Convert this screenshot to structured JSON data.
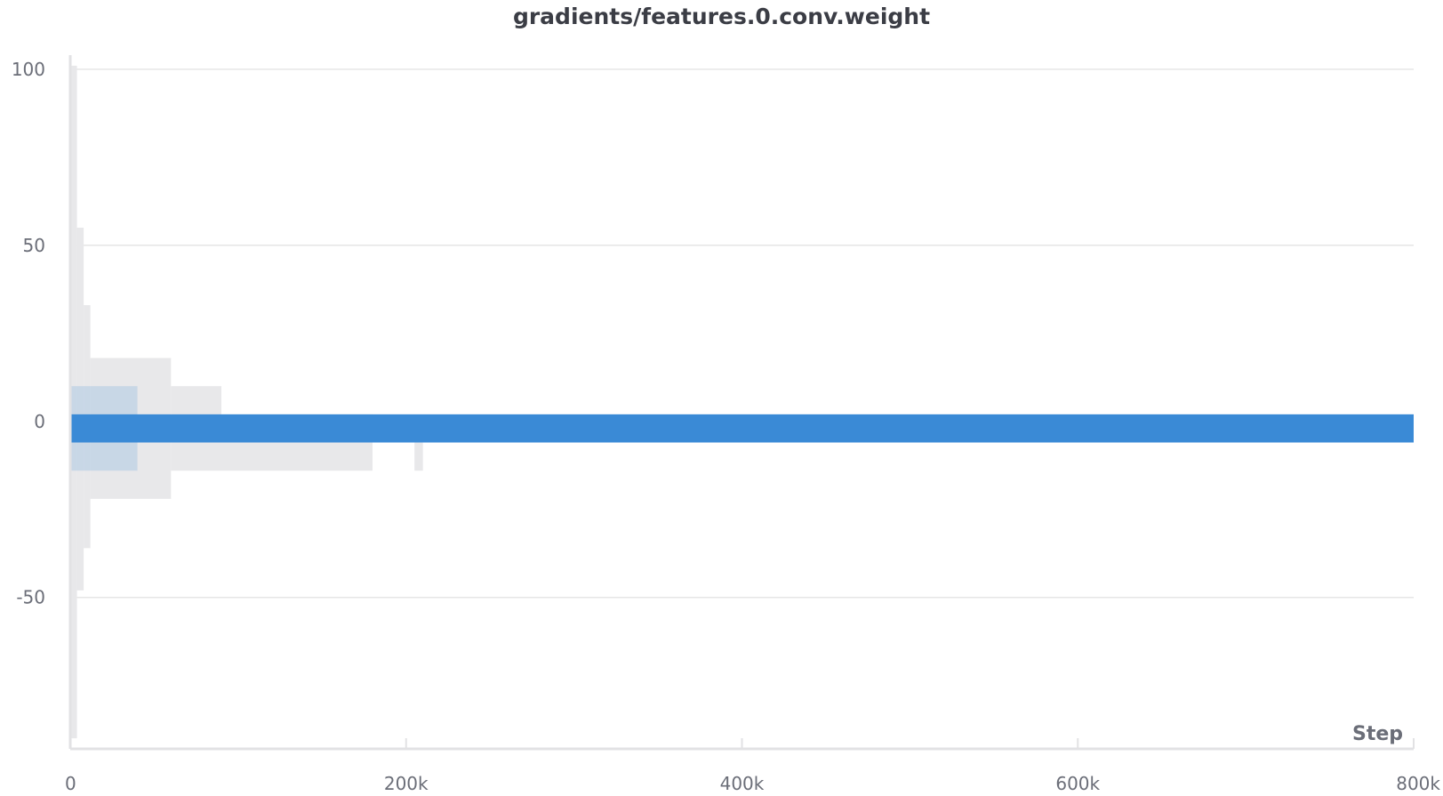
{
  "chart_data": {
    "type": "heatmap",
    "subtype": "histogram-over-time",
    "title": "gradients/features.0.conv.weight",
    "xlabel": "Step",
    "ylabel": "",
    "xlim": [
      0,
      800000
    ],
    "ylim": [
      -93,
      104
    ],
    "x_ticks": [
      {
        "value": 0,
        "label": "0"
      },
      {
        "value": 200000,
        "label": "200k"
      },
      {
        "value": 400000,
        "label": "400k"
      },
      {
        "value": 600000,
        "label": "600k"
      },
      {
        "value": 800000,
        "label": "800k"
      }
    ],
    "y_ticks": [
      {
        "value": -50,
        "label": "-50"
      },
      {
        "value": 0,
        "label": "0"
      },
      {
        "value": 50,
        "label": "50"
      },
      {
        "value": 100,
        "label": "100"
      }
    ],
    "grid": true,
    "colors": {
      "dense": "#3a8ad6",
      "sparse": "#e8e8ea",
      "grid": "#e6e6e6",
      "axis": "#e2e2e4"
    },
    "core_band": {
      "x_start": 0,
      "x_end": 800000,
      "y_low": -6,
      "y_high": 2
    },
    "early_band": {
      "x_start": 0,
      "x_end": 40000,
      "y_low": -14,
      "y_high": 10
    },
    "sparse_ranges": [
      {
        "x": 0,
        "x2": 4000,
        "low": -90,
        "high": 101
      },
      {
        "x": 4000,
        "x2": 8000,
        "low": -48,
        "high": 55
      },
      {
        "x": 8000,
        "x2": 12000,
        "low": -36,
        "high": 33
      },
      {
        "x": 12000,
        "x2": 60000,
        "low": -22,
        "high": 18
      },
      {
        "x": 60000,
        "x2": 90000,
        "low": -14,
        "high": 10
      },
      {
        "x": 90000,
        "x2": 180000,
        "low": -14,
        "high": 2
      },
      {
        "x": 205000,
        "x2": 210000,
        "low": -14,
        "high": -6
      }
    ]
  }
}
